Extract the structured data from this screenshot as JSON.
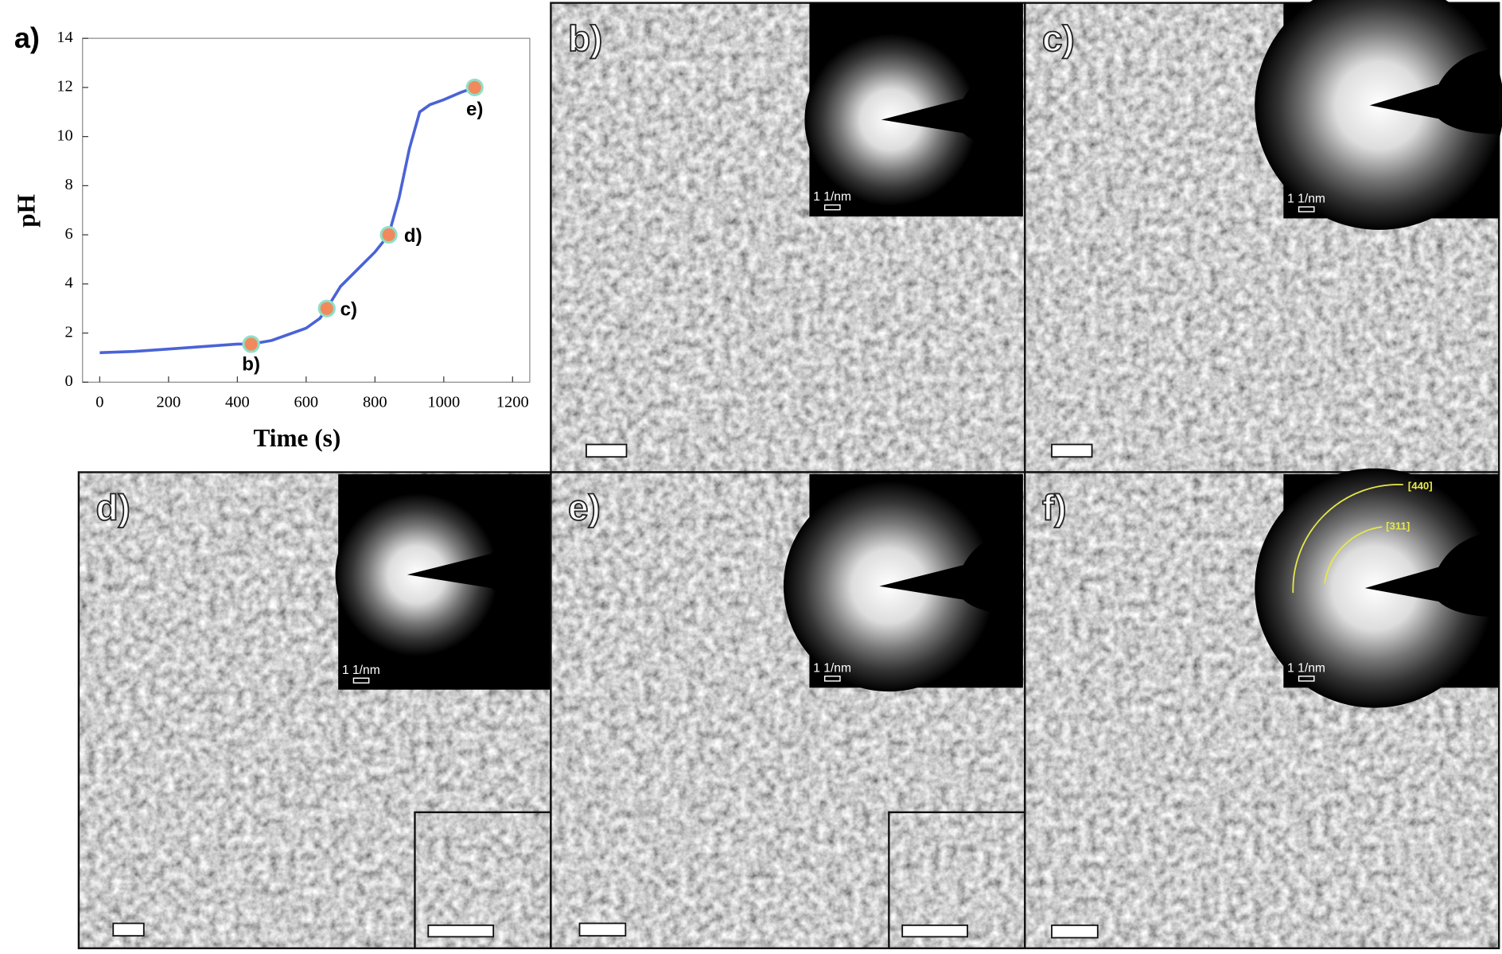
{
  "chart_data": {
    "type": "line",
    "panel_label": "a)",
    "x_label": "Time (s)",
    "y_label": "pH",
    "x": [
      0,
      100,
      200,
      300,
      400,
      440,
      500,
      600,
      640,
      660,
      700,
      750,
      800,
      840,
      870,
      900,
      930,
      960,
      1000,
      1050,
      1090
    ],
    "series": [
      {
        "color": "#4a63d6",
        "values": [
          1.2,
          1.25,
          1.35,
          1.45,
          1.55,
          1.55,
          1.7,
          2.2,
          2.6,
          3.0,
          3.9,
          4.6,
          5.3,
          6.0,
          7.5,
          9.5,
          11.0,
          11.3,
          11.5,
          11.8,
          12.0
        ]
      }
    ],
    "annotations": [
      {
        "x": 440,
        "y": 1.55,
        "label": "b)"
      },
      {
        "x": 660,
        "y": 3.0,
        "label": "c)"
      },
      {
        "x": 840,
        "y": 6.0,
        "label": "d)"
      },
      {
        "x": 1090,
        "y": 12.0,
        "label": "e)"
      }
    ],
    "xlim": [
      -50,
      1250
    ],
    "ylim": [
      0,
      14
    ],
    "xticks": [
      0,
      200,
      400,
      600,
      800,
      1000,
      1200
    ],
    "yticks": [
      0,
      2,
      4,
      6,
      8,
      10,
      12,
      14
    ]
  },
  "panels": [
    {
      "label": "b)",
      "inset_scale_label": "1 1/nm"
    },
    {
      "label": "c)",
      "inset_scale_label": "1 1/nm"
    },
    {
      "label": "d)",
      "inset_scale_label": "1 1/nm"
    },
    {
      "label": "e)",
      "inset_scale_label": "1 1/nm"
    },
    {
      "label": "f)",
      "inset_scale_label": "1 1/nm",
      "ring_labels": [
        "[440]",
        "[311]"
      ]
    }
  ]
}
